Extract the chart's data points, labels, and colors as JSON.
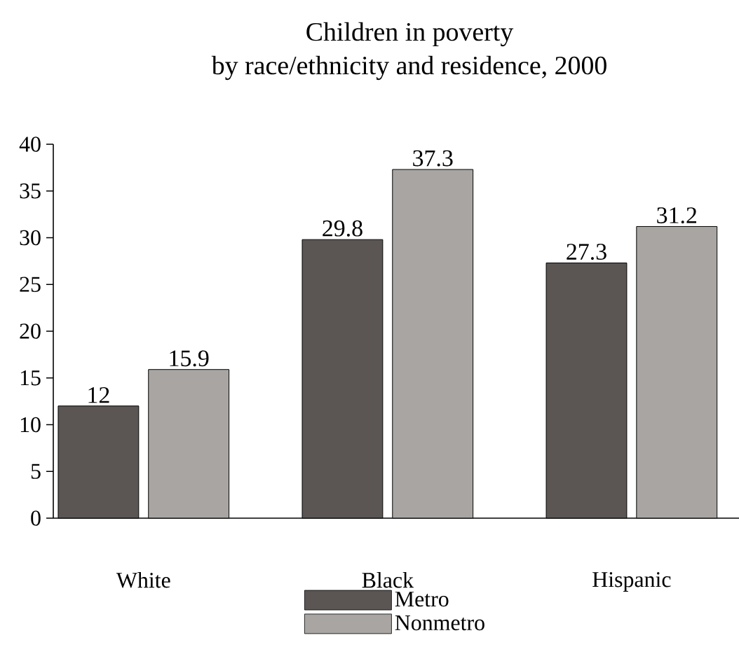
{
  "chart_data": {
    "type": "bar",
    "title": "Children in poverty",
    "subtitle": "by race/ethnicity and residence, 2000",
    "categories": [
      "White",
      "Black",
      "Hispanic"
    ],
    "series": [
      {
        "name": "Metro",
        "color": "#5b5654",
        "values": [
          12,
          29.8,
          27.3
        ]
      },
      {
        "name": "Nonmetro",
        "color": "#a8a5a2",
        "values": [
          15.9,
          37.3,
          31.2
        ]
      }
    ],
    "ylim": [
      0,
      40
    ],
    "yticks": [
      0,
      5,
      10,
      15,
      20,
      25,
      30,
      35,
      40
    ],
    "data_labels": true,
    "legend": "bottom"
  }
}
